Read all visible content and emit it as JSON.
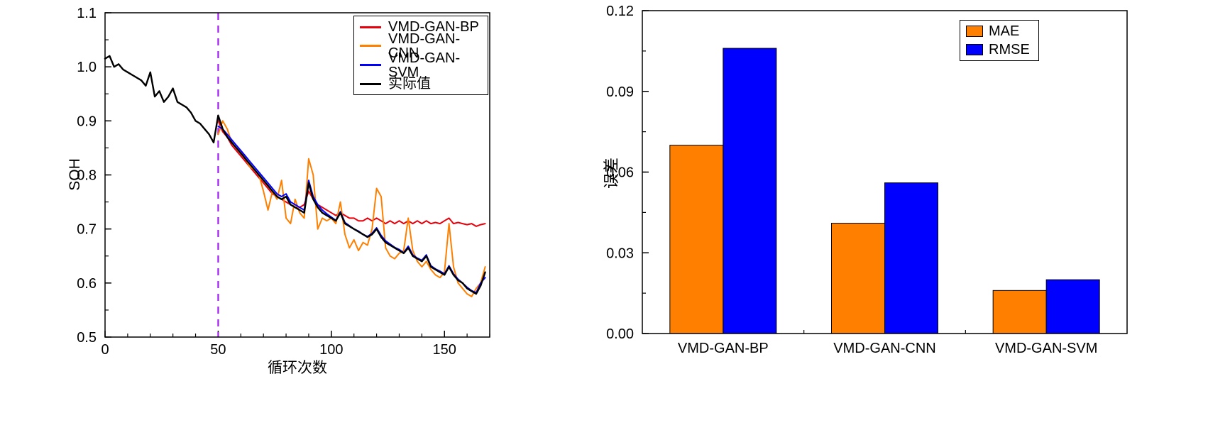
{
  "figure": {
    "background": "#ffffff"
  },
  "chart_data": [
    {
      "type": "line",
      "title": "",
      "xlabel": "循环次数",
      "ylabel": "SOH",
      "xlim": [
        0,
        170
      ],
      "ylim": [
        0.5,
        1.1
      ],
      "xticks": [
        "0",
        "50",
        "100",
        "150"
      ],
      "yticks": [
        "0.5",
        "0.6",
        "0.7",
        "0.8",
        "0.9",
        "1.0",
        "1.1"
      ],
      "x_minor_step": 10,
      "y_minor_step": 0.05,
      "grid": false,
      "legend_position": "top-right",
      "annotations": [
        {
          "type": "vline",
          "x": 50,
          "color": "#A020F0",
          "style": "dashed"
        }
      ],
      "series": [
        {
          "name": "VMD-GAN-BP",
          "color": "#E8000B",
          "x_start": 50,
          "x_step": 2,
          "y": [
            0.9,
            0.88,
            0.87,
            0.855,
            0.845,
            0.835,
            0.825,
            0.815,
            0.805,
            0.795,
            0.785,
            0.775,
            0.765,
            0.76,
            0.755,
            0.75,
            0.745,
            0.74,
            0.74,
            0.745,
            0.77,
            0.755,
            0.745,
            0.74,
            0.735,
            0.73,
            0.725,
            0.73,
            0.725,
            0.72,
            0.72,
            0.715,
            0.715,
            0.72,
            0.715,
            0.72,
            0.715,
            0.71,
            0.715,
            0.71,
            0.715,
            0.71,
            0.715,
            0.71,
            0.715,
            0.71,
            0.715,
            0.71,
            0.712,
            0.71,
            0.715,
            0.72,
            0.71,
            0.712,
            0.71,
            0.708,
            0.71,
            0.705,
            0.708,
            0.71
          ]
        },
        {
          "name": "VMD-GAN-CNN",
          "color": "#FF8000",
          "x_start": 50,
          "x_step": 2,
          "y": [
            0.875,
            0.9,
            0.885,
            0.86,
            0.85,
            0.845,
            0.83,
            0.815,
            0.81,
            0.8,
            0.77,
            0.735,
            0.77,
            0.755,
            0.79,
            0.72,
            0.71,
            0.755,
            0.73,
            0.72,
            0.83,
            0.8,
            0.7,
            0.72,
            0.715,
            0.72,
            0.71,
            0.75,
            0.69,
            0.665,
            0.68,
            0.66,
            0.675,
            0.67,
            0.7,
            0.775,
            0.76,
            0.665,
            0.65,
            0.645,
            0.655,
            0.66,
            0.72,
            0.66,
            0.64,
            0.63,
            0.64,
            0.625,
            0.615,
            0.61,
            0.62,
            0.71,
            0.63,
            0.6,
            0.59,
            0.58,
            0.575,
            0.59,
            0.6,
            0.63
          ]
        },
        {
          "name": "VMD-GAN-SVM",
          "color": "#0000FF",
          "x_start": 50,
          "x_step": 2,
          "y": [
            0.89,
            0.885,
            0.875,
            0.865,
            0.855,
            0.845,
            0.835,
            0.825,
            0.815,
            0.805,
            0.795,
            0.785,
            0.775,
            0.765,
            0.76,
            0.765,
            0.75,
            0.745,
            0.74,
            0.735,
            0.79,
            0.76,
            0.745,
            0.735,
            0.728,
            0.722,
            0.716,
            0.732,
            0.712,
            0.706,
            0.7,
            0.696,
            0.69,
            0.686,
            0.692,
            0.702,
            0.688,
            0.678,
            0.672,
            0.666,
            0.662,
            0.656,
            0.668,
            0.652,
            0.646,
            0.642,
            0.652,
            0.632,
            0.626,
            0.622,
            0.617,
            0.632,
            0.617,
            0.607,
            0.6,
            0.592,
            0.586,
            0.582,
            0.6,
            0.61
          ]
        },
        {
          "name": "实际值",
          "color": "#000000",
          "x_start": 0,
          "x_step": 2,
          "y": [
            1.015,
            1.02,
            1.0,
            1.005,
            0.995,
            0.99,
            0.985,
            0.98,
            0.975,
            0.965,
            0.99,
            0.945,
            0.955,
            0.935,
            0.945,
            0.96,
            0.935,
            0.93,
            0.925,
            0.915,
            0.9,
            0.895,
            0.885,
            0.875,
            0.86,
            0.91,
            0.885,
            0.87,
            0.86,
            0.85,
            0.84,
            0.83,
            0.82,
            0.81,
            0.8,
            0.79,
            0.78,
            0.77,
            0.76,
            0.755,
            0.76,
            0.745,
            0.74,
            0.735,
            0.73,
            0.785,
            0.755,
            0.74,
            0.73,
            0.725,
            0.72,
            0.715,
            0.73,
            0.71,
            0.705,
            0.7,
            0.695,
            0.69,
            0.685,
            0.69,
            0.7,
            0.685,
            0.675,
            0.67,
            0.665,
            0.66,
            0.655,
            0.665,
            0.65,
            0.645,
            0.64,
            0.65,
            0.63,
            0.625,
            0.62,
            0.615,
            0.63,
            0.615,
            0.605,
            0.6,
            0.59,
            0.585,
            0.58,
            0.595,
            0.62
          ]
        }
      ]
    },
    {
      "type": "bar",
      "title": "",
      "xlabel": "",
      "ylabel": "误差",
      "categories": [
        "VMD-GAN-BP",
        "VMD-GAN-CNN",
        "VMD-GAN-SVM"
      ],
      "ylim": [
        0,
        0.12
      ],
      "yticks": [
        "0.00",
        "0.03",
        "0.06",
        "0.09",
        "0.12"
      ],
      "y_minor_step": 0.015,
      "grid": false,
      "legend_position": "top-right",
      "series": [
        {
          "name": "MAE",
          "color": "#FF8000",
          "values": [
            0.07,
            0.041,
            0.016
          ]
        },
        {
          "name": "RMSE",
          "color": "#0000FF",
          "values": [
            0.106,
            0.056,
            0.02
          ]
        }
      ]
    }
  ]
}
